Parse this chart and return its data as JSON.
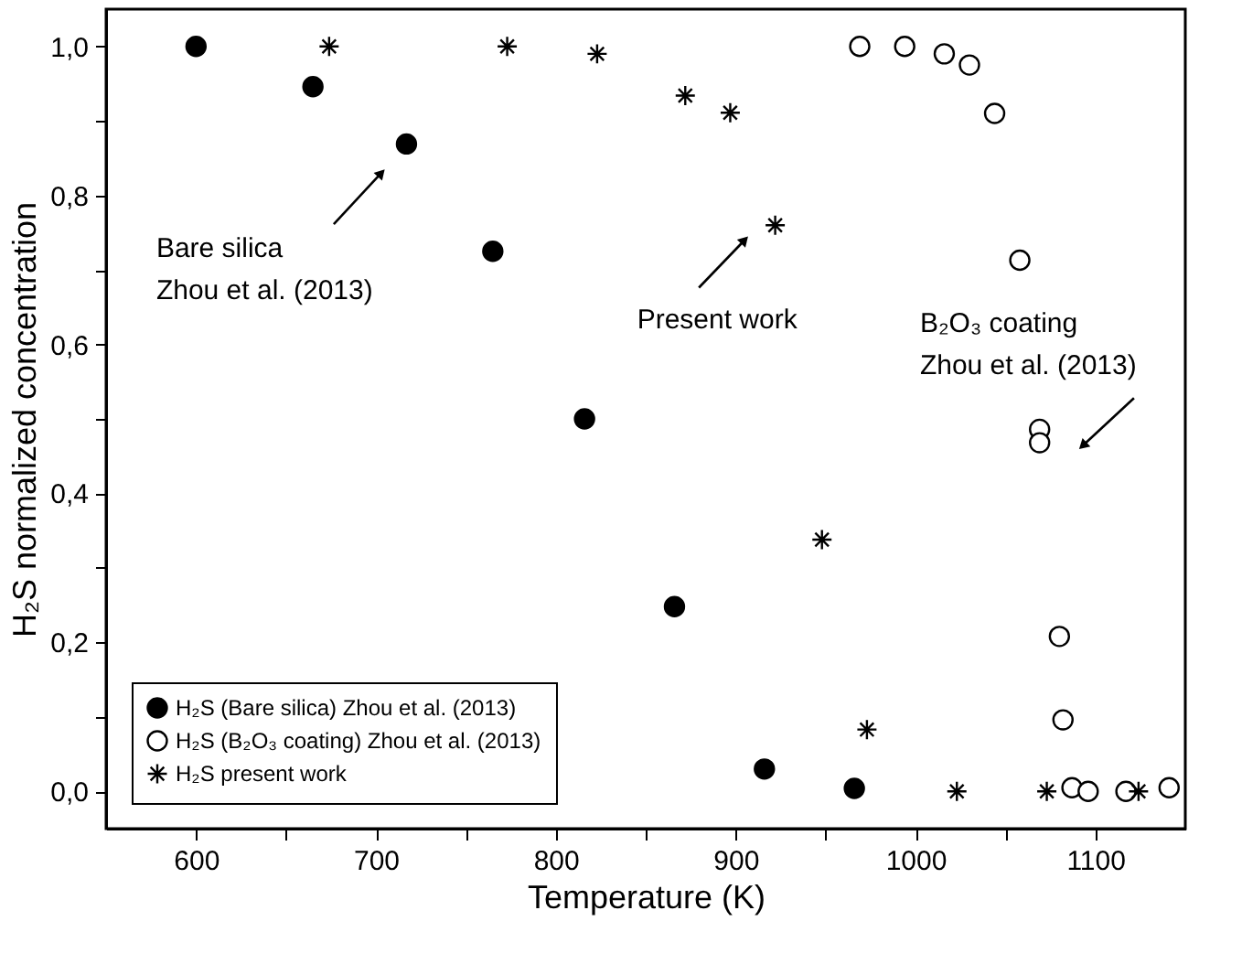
{
  "chart_data": {
    "type": "scatter",
    "xlabel": "Temperature (K)",
    "ylabel": "H₂S normalized concentration",
    "xlim": [
      550,
      1150
    ],
    "ylim": [
      -0.05,
      1.05
    ],
    "xticks": [
      600,
      {
        "value": 650,
        "label": null
      },
      700,
      {
        "value": 750,
        "label": null
      },
      800,
      {
        "value": 850,
        "label": null
      },
      900,
      {
        "value": 950,
        "label": null
      },
      1000,
      {
        "value": 1050,
        "label": null
      },
      1100
    ],
    "yticks": [
      {
        "value": 0,
        "label": "0,0"
      },
      {
        "value": 0.1,
        "label": null
      },
      {
        "value": 0.2,
        "label": "0,2"
      },
      {
        "value": 0.3,
        "label": null
      },
      {
        "value": 0.4,
        "label": "0,4"
      },
      {
        "value": 0.5,
        "label": null
      },
      {
        "value": 0.6,
        "label": "0,6"
      },
      {
        "value": 0.7,
        "label": null
      },
      {
        "value": 0.8,
        "label": "0,8"
      },
      {
        "value": 0.9,
        "label": null
      },
      {
        "value": 1,
        "label": "1,0"
      }
    ],
    "grid": false,
    "legend": "bottom left",
    "series": [
      {
        "name": "H₂S (Bare silica) Zhou et al. (2013)",
        "color": "#000000",
        "marker": "circle",
        "x": [
          600,
          665,
          717,
          765,
          816,
          866,
          916,
          966
        ],
        "values": [
          1.0,
          0.946,
          0.869,
          0.725,
          0.5,
          0.248,
          0.03,
          0.004
        ]
      },
      {
        "name": "H₂S (B₂O₃ coating) Zhou et al. (2013)",
        "color": "#ffffff",
        "marker": "circle",
        "x": [
          969,
          994,
          1016,
          1030,
          1044,
          1058,
          1069,
          1069,
          1080,
          1082,
          1087,
          1096,
          1117,
          1141
        ],
        "values": [
          1.0,
          1.0,
          0.99,
          0.975,
          0.91,
          0.713,
          0.486,
          0.468,
          0.208,
          0.096,
          0.005,
          0.0,
          0.0,
          0.005
        ]
      },
      {
        "name": "H₂S present work",
        "color": "#000000",
        "marker": "cross",
        "x": [
          674,
          773,
          823,
          872,
          897,
          922,
          948,
          973,
          1023,
          1073,
          1124
        ],
        "values": [
          1.0,
          1.0,
          0.99,
          0.934,
          0.911,
          0.76,
          0.338,
          0.083,
          0.0,
          0.0,
          0.0
        ]
      }
    ],
    "annotations": [
      {
        "text": "Bare silica\nZhou et al. (2013)",
        "x": 703,
        "y": 0.83
      },
      {
        "text": "Present work",
        "x": 905,
        "y": 0.74
      },
      {
        "text": "B₂O₃ coating\nZhou et al. (2013)",
        "x": 1093,
        "y": 0.464
      }
    ]
  }
}
